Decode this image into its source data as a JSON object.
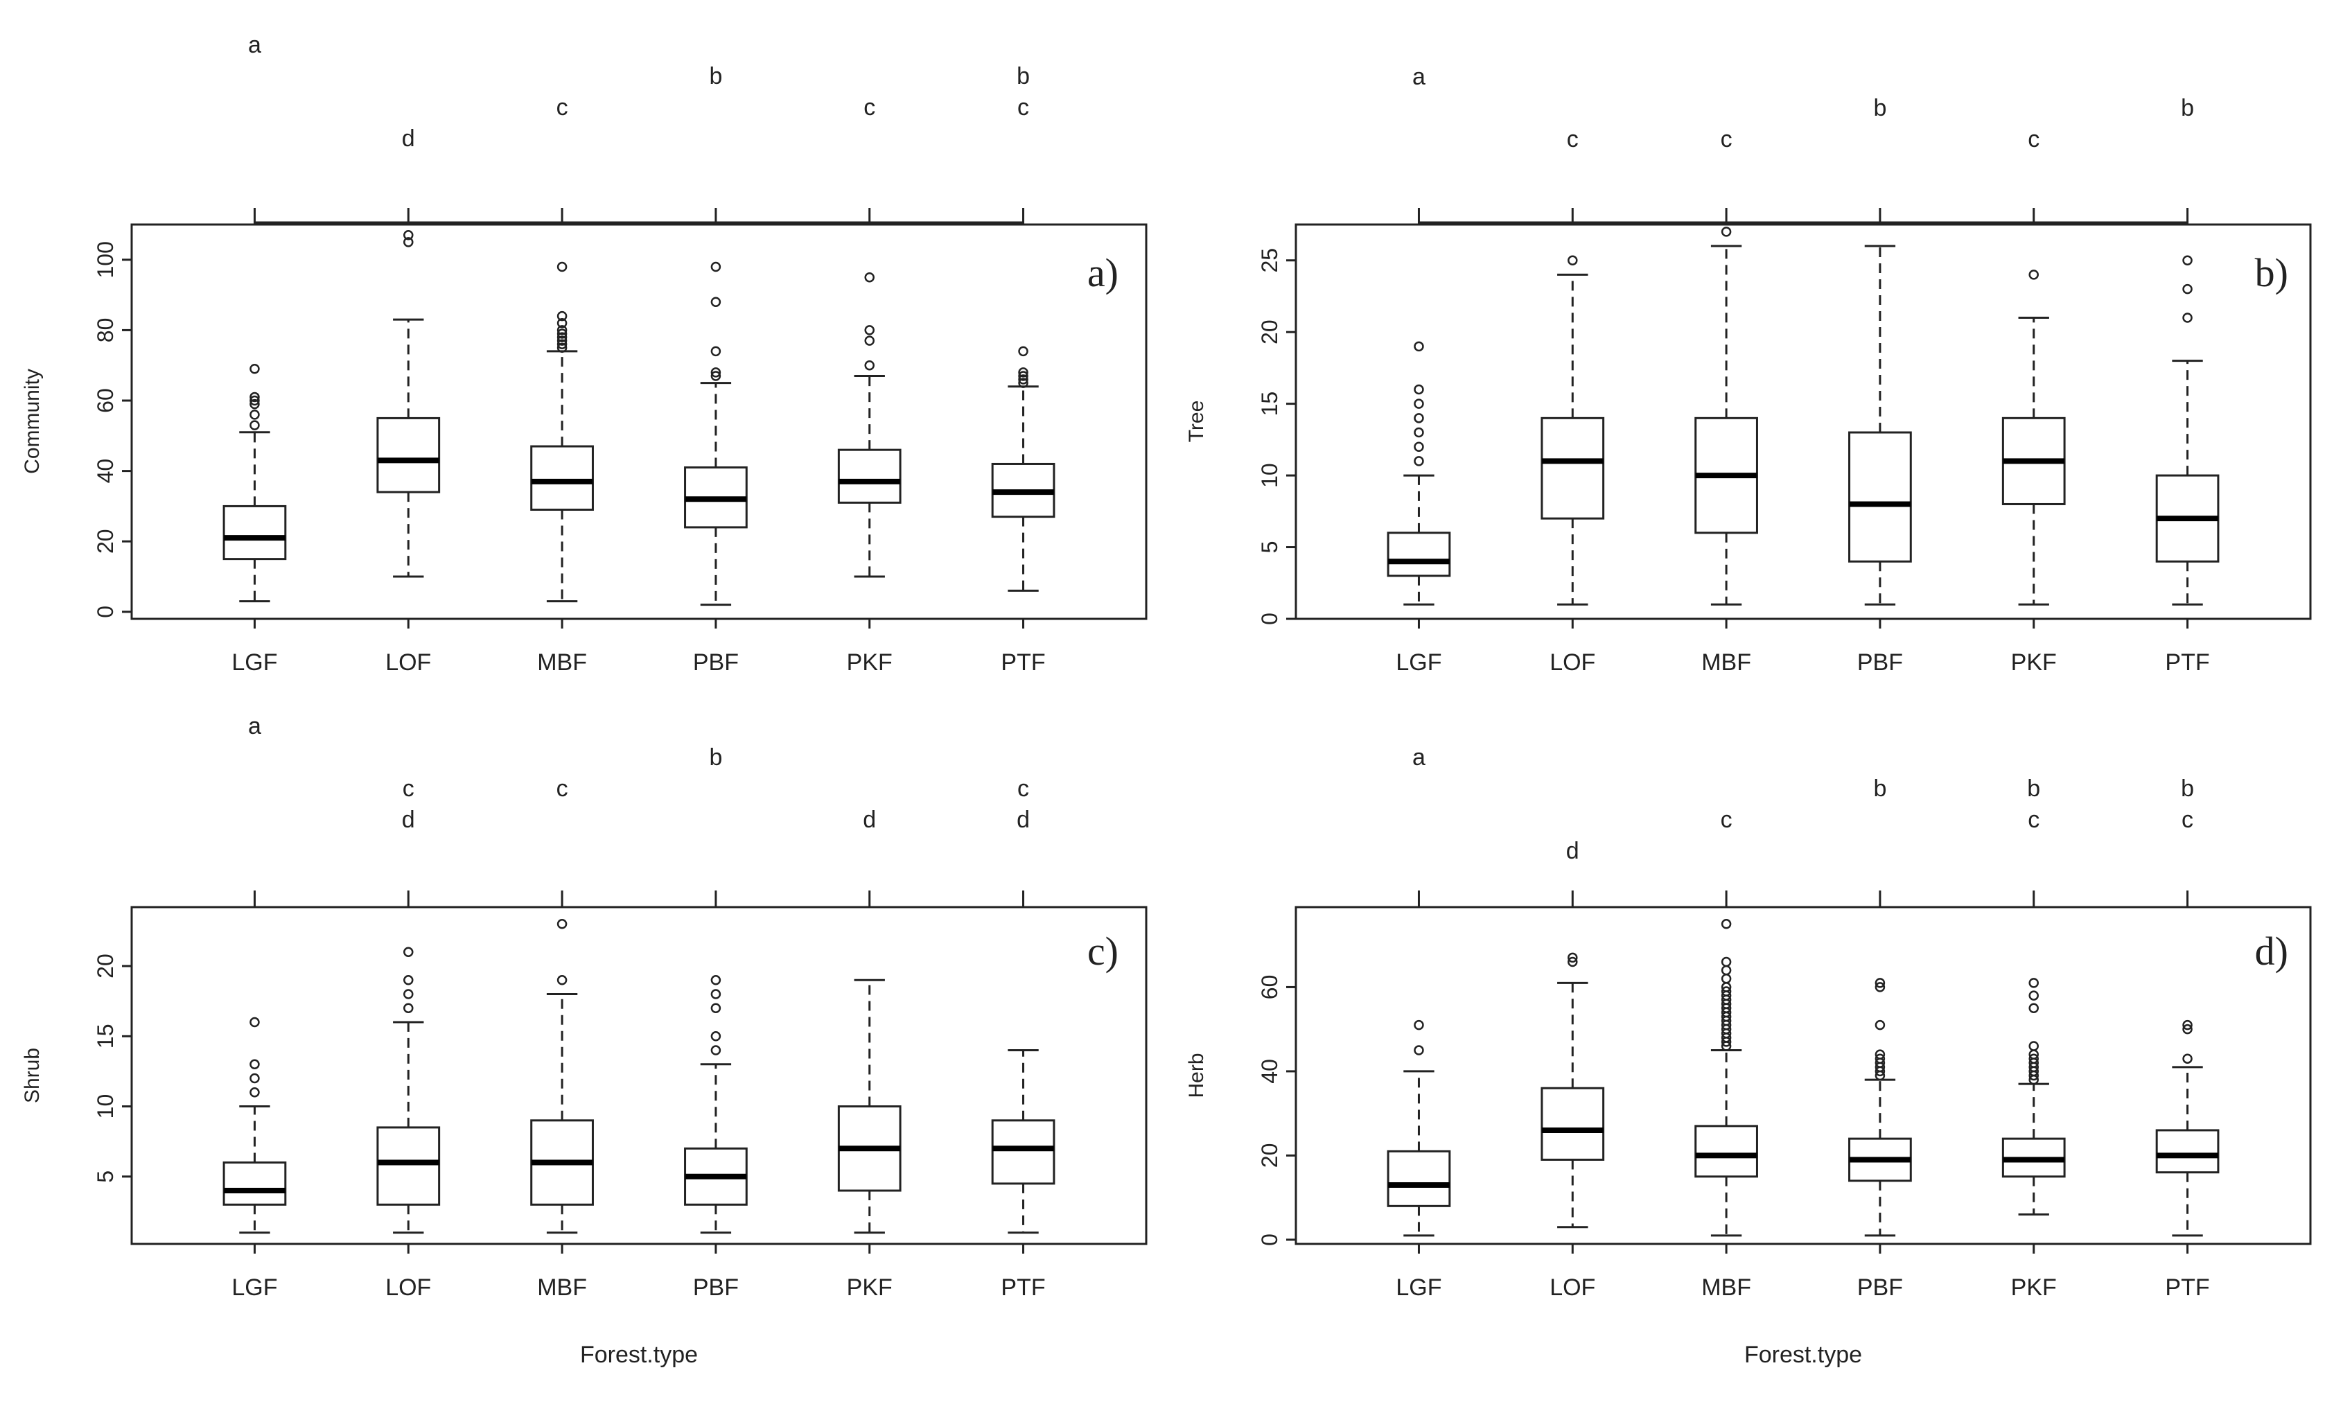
{
  "chart_data": [
    {
      "type": "boxplot",
      "panel": "a)",
      "ylabel": "Community",
      "xlabel": "",
      "categories": [
        "LGF",
        "LOF",
        "MBF",
        "PBF",
        "PKF",
        "PTF"
      ],
      "ylim": [
        -2,
        110
      ],
      "yticks": [
        0,
        20,
        40,
        60,
        80,
        100
      ],
      "boxes": [
        {
          "cat": "LGF",
          "whislo": 3,
          "q1": 15,
          "med": 21,
          "q3": 30,
          "whishi": 51,
          "outliers": [
            53,
            56,
            59,
            60,
            61,
            69
          ]
        },
        {
          "cat": "LOF",
          "whislo": 10,
          "q1": 34,
          "med": 43,
          "q3": 55,
          "whishi": 83,
          "outliers": [
            105,
            107
          ]
        },
        {
          "cat": "MBF",
          "whislo": 3,
          "q1": 29,
          "med": 37,
          "q3": 47,
          "whishi": 74,
          "outliers": [
            75,
            76,
            77,
            78,
            79,
            80,
            82,
            84,
            98
          ]
        },
        {
          "cat": "PBF",
          "whislo": 2,
          "q1": 24,
          "med": 32,
          "q3": 41,
          "whishi": 65,
          "outliers": [
            67,
            68,
            74,
            88,
            98
          ]
        },
        {
          "cat": "PKF",
          "whislo": 10,
          "q1": 31,
          "med": 37,
          "q3": 46,
          "whishi": 67,
          "outliers": [
            70,
            77,
            80,
            95
          ]
        },
        {
          "cat": "PTF",
          "whislo": 6,
          "q1": 27,
          "med": 34,
          "q3": 42,
          "whishi": 64,
          "outliers": [
            65,
            66,
            67,
            68,
            74
          ]
        }
      ],
      "letters": [
        {
          "cat": "LGF",
          "rows": [
            "a"
          ]
        },
        {
          "cat": "LOF",
          "rows": [
            "d"
          ]
        },
        {
          "cat": "MBF",
          "rows": [
            "c"
          ]
        },
        {
          "cat": "PBF",
          "rows": [
            "b"
          ]
        },
        {
          "cat": "PKF",
          "rows": [
            "c"
          ]
        },
        {
          "cat": "PTF",
          "rows": [
            "b",
            "c"
          ]
        }
      ]
    },
    {
      "type": "boxplot",
      "panel": "b)",
      "ylabel": "Tree",
      "xlabel": "",
      "categories": [
        "LGF",
        "LOF",
        "MBF",
        "PBF",
        "PKF",
        "PTF"
      ],
      "ylim": [
        0,
        27.5
      ],
      "yticks": [
        0,
        5,
        10,
        15,
        20,
        25
      ],
      "boxes": [
        {
          "cat": "LGF",
          "whislo": 1,
          "q1": 3,
          "med": 4,
          "q3": 6,
          "whishi": 10,
          "outliers": [
            11,
            12,
            13,
            14,
            15,
            16,
            19
          ]
        },
        {
          "cat": "LOF",
          "whislo": 1,
          "q1": 7,
          "med": 11,
          "q3": 14,
          "whishi": 24,
          "outliers": [
            25
          ]
        },
        {
          "cat": "MBF",
          "whislo": 1,
          "q1": 6,
          "med": 10,
          "q3": 14,
          "whishi": 26,
          "outliers": [
            27
          ]
        },
        {
          "cat": "PBF",
          "whislo": 1,
          "q1": 4,
          "med": 8,
          "q3": 13,
          "whishi": 26,
          "outliers": []
        },
        {
          "cat": "PKF",
          "whislo": 1,
          "q1": 8,
          "med": 11,
          "q3": 14,
          "whishi": 21,
          "outliers": [
            24
          ]
        },
        {
          "cat": "PTF",
          "whislo": 1,
          "q1": 4,
          "med": 7,
          "q3": 10,
          "whishi": 18,
          "outliers": [
            21,
            23,
            25
          ]
        }
      ],
      "letters": [
        {
          "cat": "LGF",
          "rows": [
            "a"
          ]
        },
        {
          "cat": "LOF",
          "rows": [
            "c"
          ]
        },
        {
          "cat": "MBF",
          "rows": [
            "c"
          ]
        },
        {
          "cat": "PBF",
          "rows": [
            "b"
          ]
        },
        {
          "cat": "PKF",
          "rows": [
            "c"
          ]
        },
        {
          "cat": "PTF",
          "rows": [
            "b"
          ]
        }
      ]
    },
    {
      "type": "boxplot",
      "panel": "c)",
      "ylabel": "Shrub",
      "xlabel": "Forest.type",
      "categories": [
        "LGF",
        "LOF",
        "MBF",
        "PBF",
        "PKF",
        "PTF"
      ],
      "ylim": [
        0.2,
        24.2
      ],
      "yticks": [
        5,
        10,
        15,
        20
      ],
      "boxes": [
        {
          "cat": "LGF",
          "whislo": 1,
          "q1": 3,
          "med": 4,
          "q3": 6,
          "whishi": 10,
          "outliers": [
            11,
            12,
            13,
            16
          ]
        },
        {
          "cat": "LOF",
          "whislo": 1,
          "q1": 3,
          "med": 6,
          "q3": 8.5,
          "whishi": 16,
          "outliers": [
            17,
            18,
            19,
            21
          ]
        },
        {
          "cat": "MBF",
          "whislo": 1,
          "q1": 3,
          "med": 6,
          "q3": 9,
          "whishi": 18,
          "outliers": [
            19,
            23
          ]
        },
        {
          "cat": "PBF",
          "whislo": 1,
          "q1": 3,
          "med": 5,
          "q3": 7,
          "whishi": 13,
          "outliers": [
            14,
            15,
            17,
            18,
            19
          ]
        },
        {
          "cat": "PKF",
          "whislo": 1,
          "q1": 4,
          "med": 7,
          "q3": 10,
          "whishi": 19,
          "outliers": []
        },
        {
          "cat": "PTF",
          "whislo": 1,
          "q1": 4.5,
          "med": 7,
          "q3": 9,
          "whishi": 14,
          "outliers": []
        }
      ],
      "letters": [
        {
          "cat": "LGF",
          "rows": [
            "a"
          ]
        },
        {
          "cat": "LOF",
          "rows": [
            "c",
            "d"
          ]
        },
        {
          "cat": "MBF",
          "rows": [
            "c"
          ]
        },
        {
          "cat": "PBF",
          "rows": [
            "b"
          ]
        },
        {
          "cat": "PKF",
          "rows": [
            "d"
          ]
        },
        {
          "cat": "PTF",
          "rows": [
            "c",
            "d"
          ]
        }
      ]
    },
    {
      "type": "boxplot",
      "panel": "d)",
      "ylabel": "Herb",
      "xlabel": "Forest.type",
      "categories": [
        "LGF",
        "LOF",
        "MBF",
        "PBF",
        "PKF",
        "PTF"
      ],
      "ylim": [
        -1,
        79
      ],
      "yticks": [
        0,
        20,
        40,
        60
      ],
      "boxes": [
        {
          "cat": "LGF",
          "whislo": 1,
          "q1": 8,
          "med": 13,
          "q3": 21,
          "whishi": 40,
          "outliers": [
            45,
            51
          ]
        },
        {
          "cat": "LOF",
          "whislo": 3,
          "q1": 19,
          "med": 26,
          "q3": 36,
          "whishi": 61,
          "outliers": [
            66,
            67
          ]
        },
        {
          "cat": "MBF",
          "whislo": 1,
          "q1": 15,
          "med": 20,
          "q3": 27,
          "whishi": 45,
          "outliers": [
            46,
            47,
            48,
            49,
            50,
            51,
            52,
            53,
            54,
            55,
            56,
            57,
            58,
            59,
            60,
            62,
            64,
            66,
            75
          ]
        },
        {
          "cat": "PBF",
          "whislo": 1,
          "q1": 14,
          "med": 19,
          "q3": 24,
          "whishi": 38,
          "outliers": [
            39,
            40,
            41,
            42,
            43,
            44,
            51,
            60,
            61
          ]
        },
        {
          "cat": "PKF",
          "whislo": 6,
          "q1": 15,
          "med": 19,
          "q3": 24,
          "whishi": 37,
          "outliers": [
            38,
            39,
            40,
            41,
            42,
            43,
            44,
            46,
            55,
            58,
            61
          ]
        },
        {
          "cat": "PTF",
          "whislo": 1,
          "q1": 16,
          "med": 20,
          "q3": 26,
          "whishi": 41,
          "outliers": [
            43,
            50,
            51
          ]
        }
      ],
      "letters": [
        {
          "cat": "LGF",
          "rows": [
            "a"
          ]
        },
        {
          "cat": "LOF",
          "rows": [
            "d"
          ]
        },
        {
          "cat": "MBF",
          "rows": [
            "c"
          ]
        },
        {
          "cat": "PBF",
          "rows": [
            "b"
          ]
        },
        {
          "cat": "PKF",
          "rows": [
            "b",
            "c"
          ]
        },
        {
          "cat": "PTF",
          "rows": [
            "b",
            "c"
          ]
        }
      ]
    }
  ]
}
